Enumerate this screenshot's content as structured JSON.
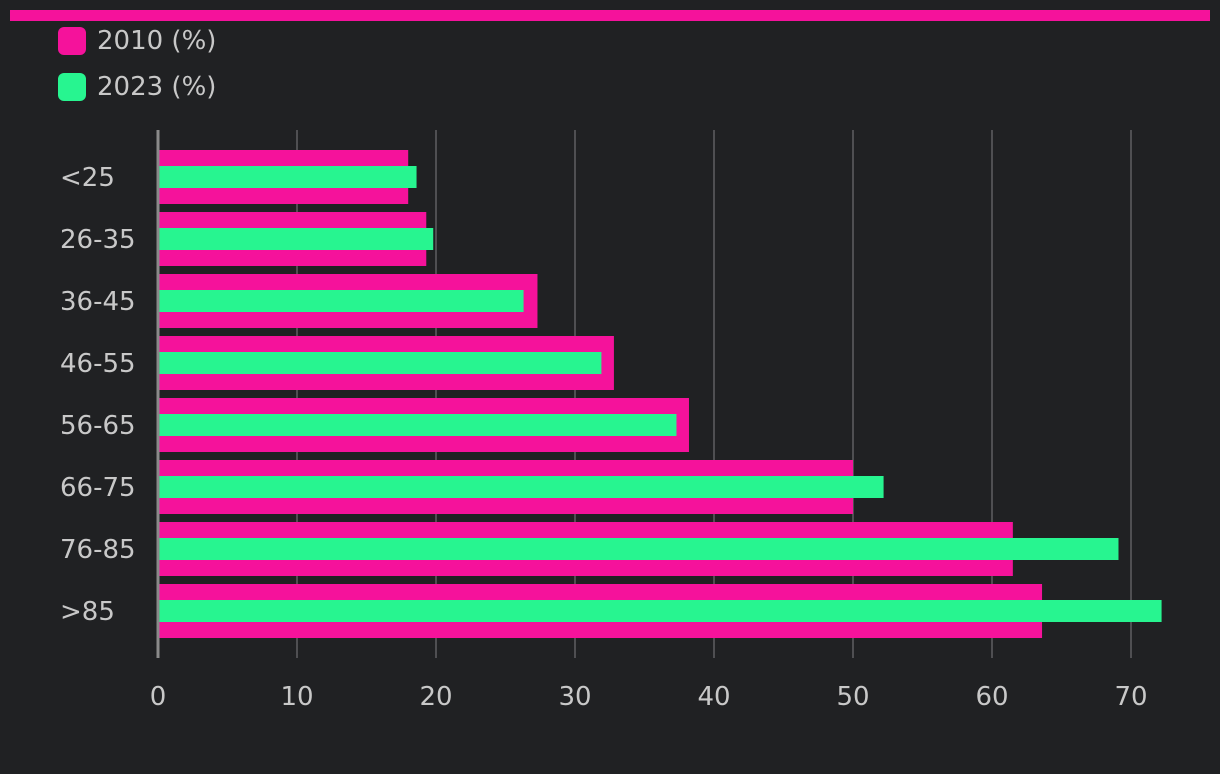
{
  "theme": {
    "background": "#202123",
    "accent": "#f5129b",
    "series_colors": [
      "#f5129b",
      "#27f590"
    ],
    "grid_color": "#5f5f63",
    "axis_color": "#8a8a8a",
    "text_color": "#c8c8c8"
  },
  "legend": {
    "items": [
      {
        "label": "2010 (%)",
        "color": "#f5129b"
      },
      {
        "label": "2023 (%)",
        "color": "#27f590"
      }
    ]
  },
  "chart_data": {
    "type": "bar",
    "orientation": "horizontal",
    "categories": [
      "<25",
      "26-35",
      "36-45",
      "46-55",
      "56-65",
      "66-75",
      "76-85",
      ">85"
    ],
    "series": [
      {
        "name": "2010 (%)",
        "values": [
          18,
          19.3,
          27.3,
          32.8,
          38.2,
          50,
          61.5,
          63.6
        ]
      },
      {
        "name": "2023 (%)",
        "values": [
          18.6,
          19.8,
          26.3,
          31.9,
          37.3,
          52.2,
          69.1,
          72.2
        ]
      }
    ],
    "xlim": [
      0,
      75
    ],
    "xticks": [
      0,
      10,
      20,
      30,
      40,
      50,
      60,
      70
    ],
    "grid": true,
    "legend_position": "top-left",
    "title": "",
    "xlabel": "",
    "ylabel": ""
  }
}
